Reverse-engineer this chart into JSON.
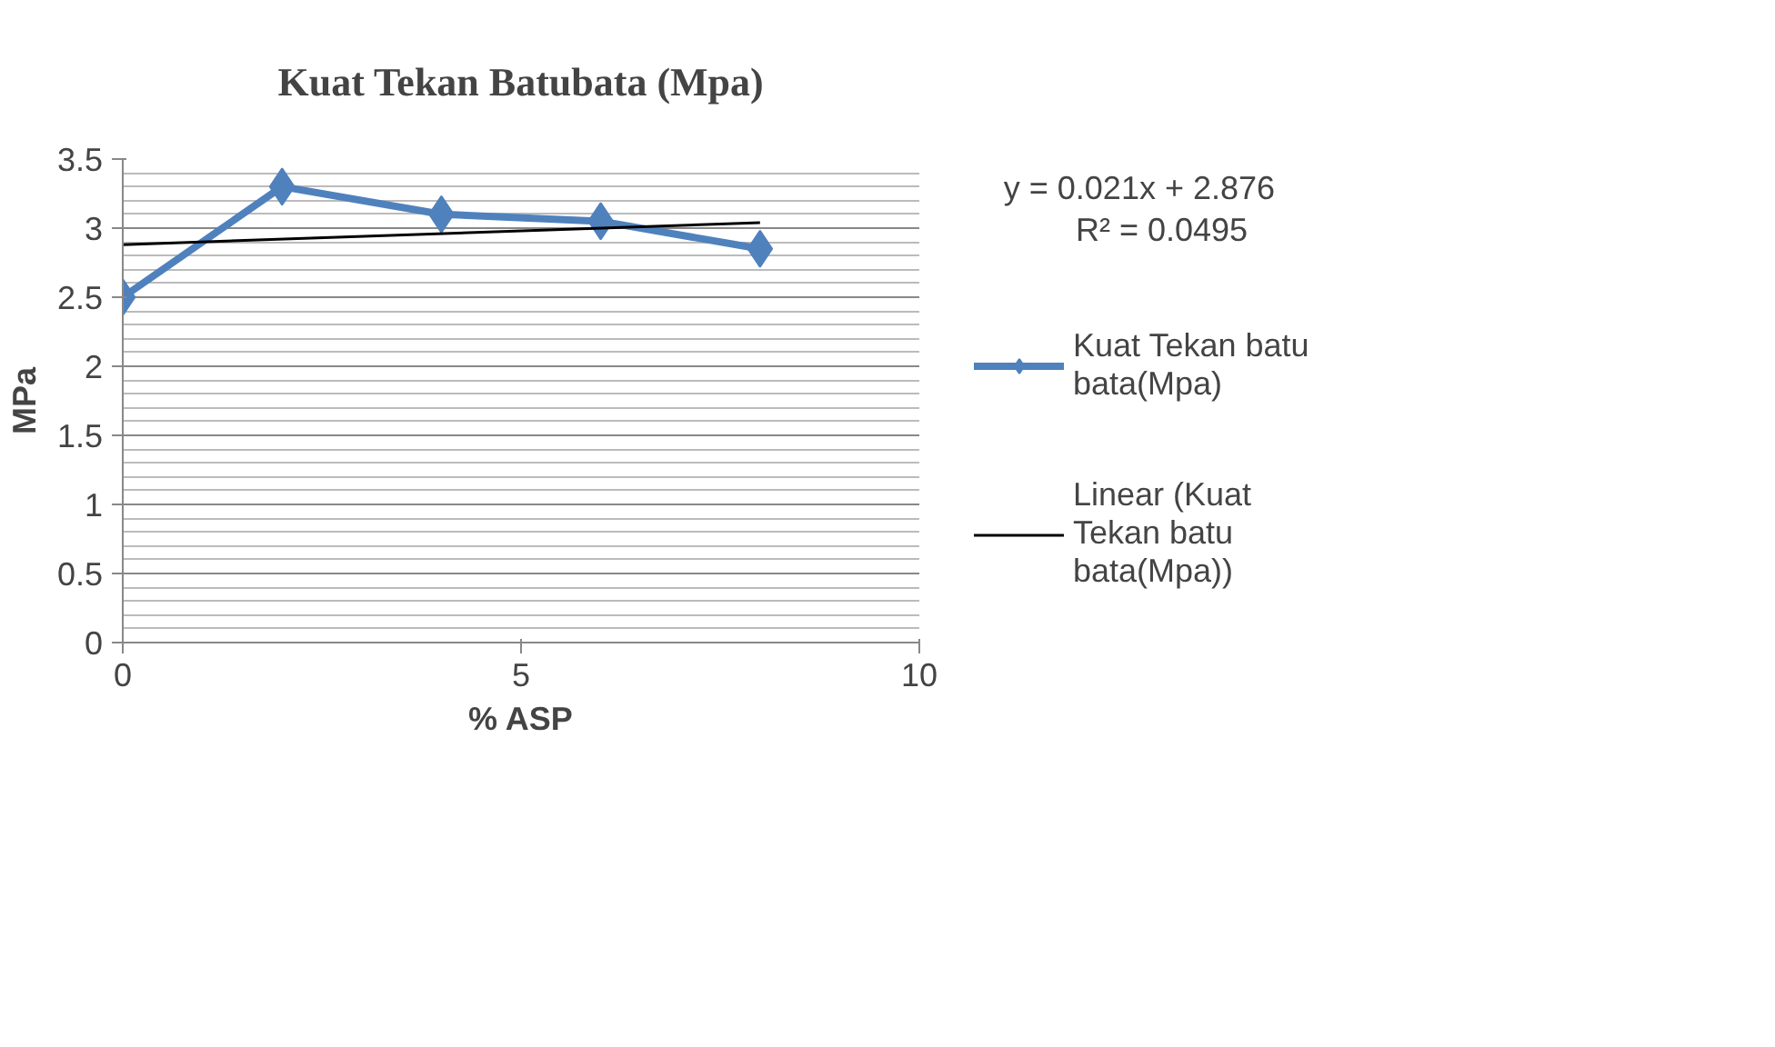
{
  "chart_data": {
    "type": "line",
    "title": "Kuat Tekan Batubata (Mpa)",
    "xlabel": "% ASP",
    "ylabel": "MPa",
    "x": [
      0,
      2,
      4,
      6,
      8
    ],
    "series": [
      {
        "name": "Kuat Tekan batu bata(Mpa)",
        "color": "#4f81bd",
        "values": [
          2.5,
          3.3,
          3.1,
          3.05,
          2.85
        ],
        "marker": "diamond"
      },
      {
        "name": "Linear (Kuat Tekan batu bata(Mpa))",
        "color": "#000000",
        "x": [
          0,
          8
        ],
        "values": [
          2.88,
          3.04
        ],
        "marker": "none"
      }
    ],
    "annotations": [
      "y = 0.021x + 2.876",
      "R² = 0.0495"
    ],
    "xlim": [
      0,
      10
    ],
    "xticks": [
      0,
      5,
      10
    ],
    "ylim": [
      0,
      3.5
    ],
    "yticks": [
      0,
      0.5,
      1,
      1.5,
      2,
      2.5,
      3,
      3.5
    ],
    "grid": "y",
    "legend": "right",
    "line_style": "solid"
  }
}
